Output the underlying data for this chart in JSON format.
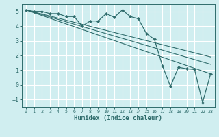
{
  "xlabel": "Humidex (Indice chaleur)",
  "ylabel": "",
  "xlim": [
    -0.5,
    23.5
  ],
  "ylim": [
    -1.5,
    5.5
  ],
  "yticks": [
    -1,
    0,
    1,
    2,
    3,
    4,
    5
  ],
  "xticks": [
    0,
    1,
    2,
    3,
    4,
    5,
    6,
    7,
    8,
    9,
    10,
    11,
    12,
    13,
    14,
    15,
    16,
    17,
    18,
    19,
    20,
    21,
    22,
    23
  ],
  "background_color": "#d0eef0",
  "grid_color": "#ffffff",
  "line_color": "#2e6b6b",
  "main_series": {
    "x": [
      0,
      1,
      2,
      3,
      4,
      5,
      6,
      7,
      8,
      9,
      10,
      11,
      12,
      13,
      14,
      15,
      16,
      17,
      18,
      19,
      20,
      21,
      22,
      23
    ],
    "y": [
      5.1,
      5.0,
      5.0,
      4.85,
      4.85,
      4.65,
      4.65,
      4.0,
      4.35,
      4.35,
      4.85,
      4.6,
      5.1,
      4.65,
      4.5,
      3.5,
      3.1,
      1.3,
      -0.1,
      1.2,
      1.1,
      1.05,
      -1.2,
      0.75
    ]
  },
  "reg_lines": [
    {
      "x": [
        0,
        23
      ],
      "y": [
        5.1,
        0.75
      ]
    },
    {
      "x": [
        0,
        23
      ],
      "y": [
        5.1,
        1.4
      ]
    },
    {
      "x": [
        0,
        23
      ],
      "y": [
        5.1,
        1.9
      ]
    }
  ]
}
